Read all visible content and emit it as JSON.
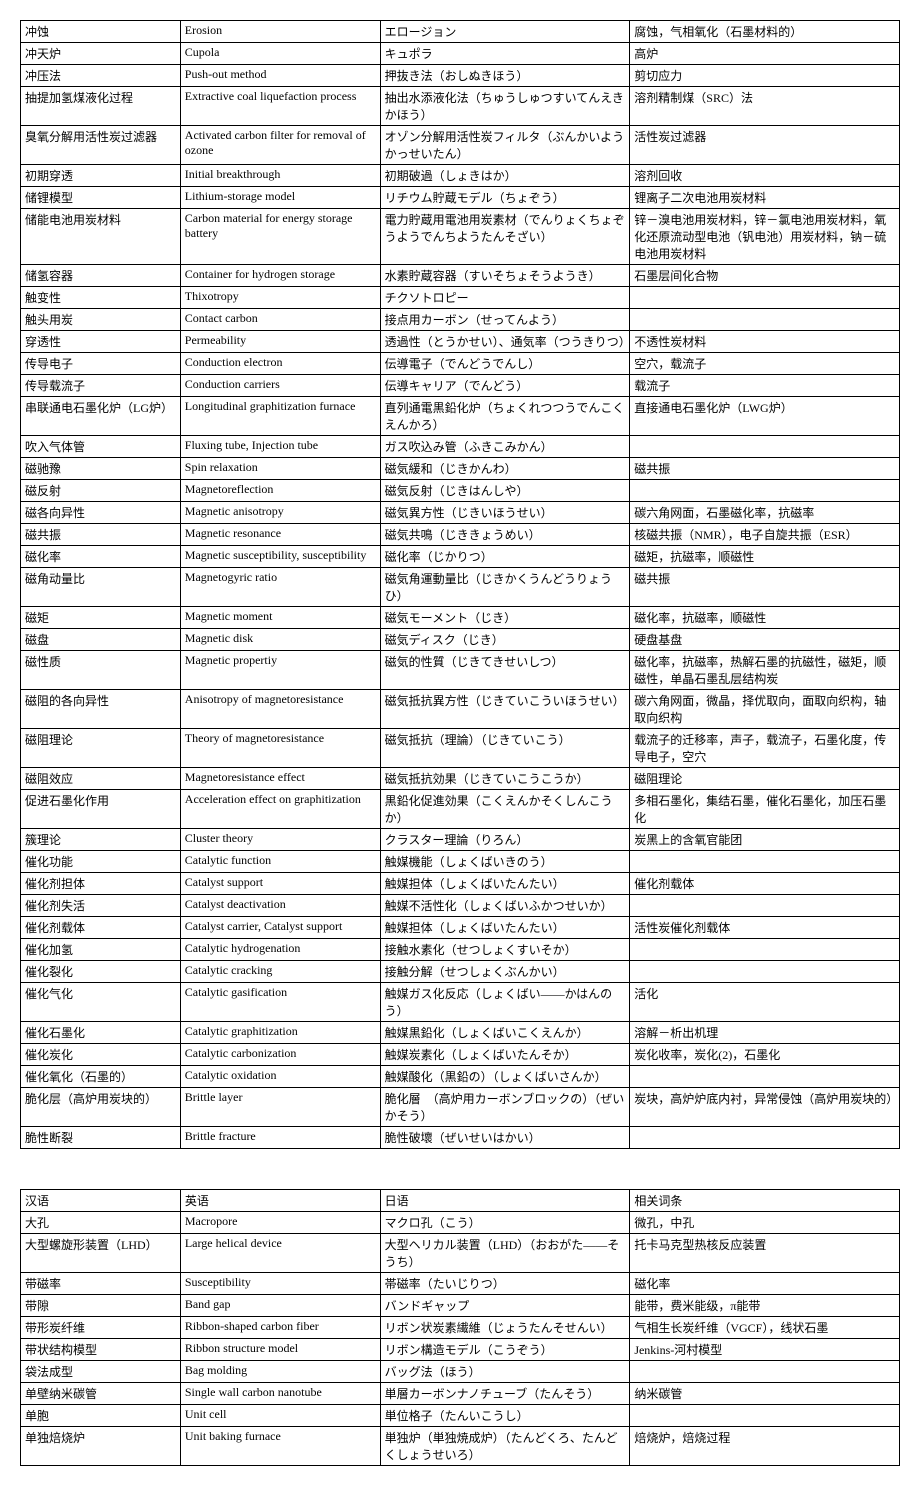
{
  "table1": {
    "rows": [
      [
        "冲蚀",
        "Erosion",
        "エロージョン",
        "腐蚀，气相氧化（石墨材料的）"
      ],
      [
        "冲天炉",
        "Cupola",
        "キュポラ",
        "高炉"
      ],
      [
        "冲压法",
        "Push-out method",
        "押抜き法（おしぬきほう）",
        "剪切应力"
      ],
      [
        "抽提加氢煤液化过程",
        "Extractive coal liquefaction process",
        "抽出水添液化法（ちゅうしゅつすいてんえきかほう）",
        "溶剂精制煤（SRC）法"
      ],
      [
        "臭氧分解用活性炭过滤器",
        "Activated carbon  filter for removal of ozone",
        "オゾン分解用活性炭フィルタ（ぶんかいようかっせいたん）",
        "活性炭过滤器"
      ],
      [
        "初期穿透",
        "Initial breakthrough",
        "初期破過（しょきはか）",
        "溶剂回收"
      ],
      [
        "储锂模型",
        "Lithium-storage model",
        "リチウム貯蔵モデル（ちょぞう）",
        "锂离子二次电池用炭材料"
      ],
      [
        "储能电池用炭材料",
        "Carbon material for energy storage battery",
        "電力貯蔵用電池用炭素材（でんりょくちょぞうようでんちようたんそざい）",
        "锌－溴电池用炭材料，锌－氯电池用炭材料，氧化还原流动型电池（钒电池）用炭材料，钠－硫电池用炭材料"
      ],
      [
        "储氢容器",
        "Container for hydrogen storage",
        "水素貯蔵容器（すいそちょそうようき）",
        "石墨层间化合物"
      ],
      [
        "触变性",
        "Thixotropy",
        "チクソトロピー",
        ""
      ],
      [
        "触头用炭",
        "Contact carbon",
        "接点用カーボン（せってんよう）",
        ""
      ],
      [
        "穿透性",
        "Permeability",
        "透過性（とうかせい）、通気率（つうきりつ）",
        "不透性炭材料"
      ],
      [
        "传导电子",
        "Conduction electron",
        "伝導電子（でんどうでんし）",
        "空穴，载流子"
      ],
      [
        "传导载流子",
        "Conduction carriers",
        "伝導キャリア（でんどう）",
        "载流子"
      ],
      [
        "串联通电石墨化炉（LG炉）",
        "Longitudinal graphitization furnace",
        "直列通電黒鉛化炉（ちょくれつつうでんこくえんかろ）",
        "直接通电石墨化炉（LWG炉）"
      ],
      [
        "吹入气体管",
        "Fluxing tube, Injection tube",
        "ガス吹込み管（ふきこみかん）",
        ""
      ],
      [
        "磁驰豫",
        "Spin relaxation",
        "磁気緩和（じきかんわ）",
        "磁共振"
      ],
      [
        "磁反射",
        "Magnetoreflection",
        "磁気反射（じきはんしや）",
        ""
      ],
      [
        "磁各向异性",
        "Magnetic anisotropy",
        "磁気異方性（じきいほうせい）",
        "碳六角网面，石墨磁化率，抗磁率"
      ],
      [
        "磁共振",
        "Magnetic resonance",
        "磁気共鳴（じききょうめい）",
        "核磁共振（NMR），电子自旋共振（ESR）"
      ],
      [
        "磁化率",
        "Magnetic susceptibility, susceptibility",
        "磁化率（じかりつ）",
        "磁矩，抗磁率，顺磁性"
      ],
      [
        "磁角动量比",
        "Magnetogyric ratio",
        "磁気角運動量比（じきかくうんどうりょうひ）",
        "磁共振"
      ],
      [
        "磁矩",
        "Magnetic moment",
        "磁気モーメント（じき）",
        "磁化率，抗磁率，顺磁性"
      ],
      [
        "磁盘",
        "Magnetic disk",
        "磁気ディスク（じき）",
        "硬盘基盘"
      ],
      [
        "磁性质",
        "Magnetic propertiy",
        "磁気的性質（じきてきせいしつ）",
        "磁化率，抗磁率，热解石墨的抗磁性，磁矩，顺磁性，单晶石墨乱层结构炭"
      ],
      [
        "磁阻的各向异性",
        "Anisotropy of magnetoresistance",
        "磁気抵抗異方性（じきていこういほうせい）",
        "碳六角网面，微晶，择优取向，面取向织构，轴取向织构"
      ],
      [
        "磁阻理论",
        "Theory of magnetoresistance",
        "磁気抵抗（理論）（じきていこう）",
        "载流子的迁移率，声子，载流子，石墨化度，传导电子，空穴"
      ],
      [
        "磁阻效应",
        "Magnetoresistance effect",
        "磁気抵抗効果（じきていこうこうか）",
        "磁阻理论"
      ],
      [
        "促进石墨化作用",
        "Acceleration effect on graphitization",
        "黒鉛化促進効果（こくえんかそくしんこうか）",
        "多相石墨化，集结石墨，催化石墨化，加压石墨化"
      ],
      [
        "簇理论",
        "Cluster theory",
        "クラスター理論（りろん）",
        "炭黑上的含氧官能团"
      ],
      [
        "催化功能",
        "Catalytic function",
        "触媒機能（しょくばいきのう）",
        ""
      ],
      [
        "催化剂担体",
        "Catalyst support",
        "触媒担体（しょくばいたんたい）",
        "催化剂载体"
      ],
      [
        "催化剂失活",
        "Catalyst deactivation",
        "触媒不活性化（しょくばいふかつせいか）",
        ""
      ],
      [
        "催化剂载体",
        "Catalyst carrier, Catalyst support",
        "触媒担体（しょくばいたんたい）",
        "活性炭催化剂载体"
      ],
      [
        "催化加氢",
        "Catalytic hydrogenation",
        "接触水素化（せつしょくすいそか）",
        ""
      ],
      [
        "催化裂化",
        "Catalytic cracking",
        "接触分解（せつしょくぶんかい）",
        ""
      ],
      [
        "催化气化",
        "Catalytic gasification",
        "触媒ガス化反応（しょくばい——かはんのう）",
        "活化"
      ],
      [
        "催化石墨化",
        "Catalytic graphitization",
        "触媒黒鉛化（しょくばいこくえんか）",
        "溶解－析出机理"
      ],
      [
        "催化炭化",
        "Catalytic carbonization",
        "触媒炭素化（しょくばいたんそか）",
        "炭化收率，炭化(2)，石墨化"
      ],
      [
        "催化氧化（石墨的）",
        "Catalytic oxidation",
        "触媒酸化（黒鉛の）（しょくばいさんか）",
        ""
      ],
      [
        "脆化层（高炉用炭块的）",
        "Brittle layer",
        "脆化層　（高炉用カーボンブロックの）（ぜいかそう）",
        "炭块，高炉炉底内衬，异常侵蚀（高炉用炭块的）"
      ],
      [
        "脆性断裂",
        "Brittle fracture",
        "脆性破壞（ぜいせいはかい）",
        ""
      ]
    ]
  },
  "table2": {
    "headers": [
      "汉语",
      "英语",
      "日语",
      "相关词条"
    ],
    "rows": [
      [
        "大孔",
        "Macropore",
        "マクロ孔（こう）",
        "微孔，中孔"
      ],
      [
        "大型螺旋形装置（LHD）",
        "Large helical device",
        "大型ヘリカル装置（LHD）（おおがた——そうち）",
        "托卡马克型热核反应装置"
      ],
      [
        "带磁率",
        "Susceptibility",
        "帯磁率（たいじりつ）",
        "磁化率"
      ],
      [
        "带隙",
        "Band gap",
        "バンドギャップ",
        "能带，费米能级，π能带"
      ],
      [
        "带形炭纤维",
        "Ribbon-shaped carbon fiber",
        "リボン状炭素繊維（じょうたんそせんい）",
        "气相生长炭纤维（VGCF），线状石墨"
      ],
      [
        "带状结构模型",
        "Ribbon structure model",
        "リボン構造モデル（こうぞう）",
        "Jenkins-河村模型"
      ],
      [
        "袋法成型",
        "Bag molding",
        "バッグ法（ほう）",
        ""
      ],
      [
        "单壁纳米碳管",
        "Single wall carbon nanotube",
        "単層カーボンナノチューブ（たんそう）",
        "纳米碳管"
      ],
      [
        "单胞",
        "Unit cell",
        "単位格子（たんいこうし）",
        ""
      ],
      [
        "单独焙烧炉",
        "Unit baking furnace",
        "単独炉（単独焼成炉）（たんどくろ、たんどくしょうせいろ）",
        "焙烧炉，焙烧过程"
      ]
    ]
  }
}
